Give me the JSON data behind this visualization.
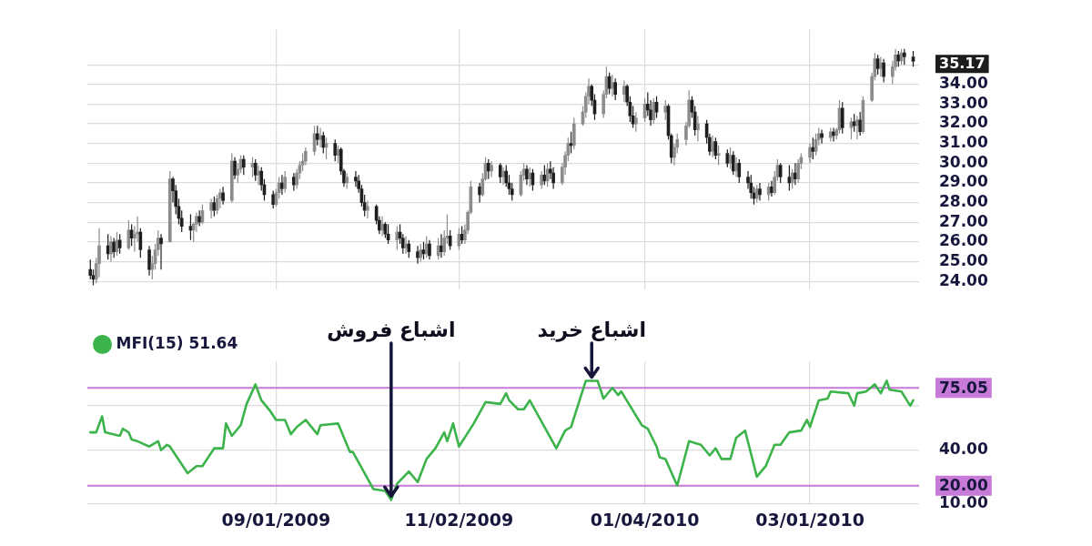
{
  "chart_data": [
    {
      "type": "candlestick",
      "x": [
        "2009-06-30",
        "2009-07-01",
        "2009-07-02",
        "2009-07-03",
        "2009-07-06",
        "2009-07-07",
        "2009-07-08",
        "2009-07-09",
        "2009-07-10",
        "2009-07-13",
        "2009-07-14",
        "2009-07-15",
        "2009-07-16",
        "2009-07-17",
        "2009-07-20",
        "2009-07-21",
        "2009-07-22",
        "2009-07-23",
        "2009-07-24",
        "2009-07-27",
        "2009-07-28",
        "2009-07-29",
        "2009-07-30",
        "2009-07-31",
        "2009-08-03",
        "2009-08-04",
        "2009-08-05",
        "2009-08-06",
        "2009-08-07",
        "2009-08-10",
        "2009-08-11",
        "2009-08-12",
        "2009-08-13",
        "2009-08-14",
        "2009-08-17",
        "2009-08-18",
        "2009-08-19",
        "2009-08-20",
        "2009-08-21",
        "2009-08-24",
        "2009-08-25",
        "2009-08-26",
        "2009-08-27",
        "2009-08-28",
        "2009-08-31",
        "2009-09-01",
        "2009-09-02",
        "2009-09-03",
        "2009-09-04",
        "2009-09-07",
        "2009-09-08",
        "2009-09-09",
        "2009-09-10",
        "2009-09-11",
        "2009-09-14",
        "2009-09-15",
        "2009-09-16",
        "2009-09-17",
        "2009-09-18",
        "2009-09-21",
        "2009-09-22",
        "2009-09-23",
        "2009-09-24",
        "2009-09-25",
        "2009-09-28",
        "2009-09-29",
        "2009-09-30",
        "2009-10-01",
        "2009-10-02",
        "2009-10-05",
        "2009-10-06",
        "2009-10-07",
        "2009-10-08",
        "2009-10-09",
        "2009-10-12",
        "2009-10-13",
        "2009-10-14",
        "2009-10-15",
        "2009-10-16",
        "2009-10-19",
        "2009-10-20",
        "2009-10-21",
        "2009-10-22",
        "2009-10-23",
        "2009-10-26",
        "2009-10-27",
        "2009-10-28",
        "2009-10-29",
        "2009-10-30",
        "2009-11-02",
        "2009-11-03",
        "2009-11-04",
        "2009-11-05",
        "2009-11-06",
        "2009-11-09",
        "2009-11-10",
        "2009-11-11",
        "2009-11-12",
        "2009-11-13",
        "2009-11-16",
        "2009-11-17",
        "2009-11-18",
        "2009-11-19",
        "2009-11-20",
        "2009-11-23",
        "2009-11-24",
        "2009-11-25",
        "2009-11-26",
        "2009-11-27",
        "2009-11-30",
        "2009-12-01",
        "2009-12-02",
        "2009-12-03",
        "2009-12-04",
        "2009-12-07",
        "2009-12-08",
        "2009-12-09",
        "2009-12-10",
        "2009-12-11",
        "2009-12-14",
        "2009-12-15",
        "2009-12-16",
        "2009-12-17",
        "2009-12-18",
        "2009-12-21",
        "2009-12-22",
        "2009-12-23",
        "2009-12-24",
        "2009-12-25",
        "2009-12-28",
        "2009-12-29",
        "2009-12-30",
        "2009-12-31",
        "2010-01-01",
        "2010-01-04",
        "2010-01-05",
        "2010-01-06",
        "2010-01-07",
        "2010-01-08",
        "2010-01-11",
        "2010-01-12",
        "2010-01-13",
        "2010-01-14",
        "2010-01-15",
        "2010-01-18",
        "2010-01-19",
        "2010-01-20",
        "2010-01-21",
        "2010-01-22",
        "2010-01-25",
        "2010-01-26",
        "2010-01-27",
        "2010-01-28",
        "2010-01-29",
        "2010-02-01",
        "2010-02-02",
        "2010-02-03",
        "2010-02-04",
        "2010-02-05",
        "2010-02-08",
        "2010-02-09",
        "2010-02-10",
        "2010-02-11",
        "2010-02-12",
        "2010-02-15",
        "2010-02-16",
        "2010-02-17",
        "2010-02-18",
        "2010-02-19",
        "2010-02-22",
        "2010-02-23",
        "2010-02-24",
        "2010-02-25",
        "2010-02-26",
        "2010-03-01",
        "2010-03-02",
        "2010-03-03",
        "2010-03-04",
        "2010-03-05",
        "2010-03-08",
        "2010-03-09",
        "2010-03-10",
        "2010-03-11",
        "2010-03-12",
        "2010-03-15",
        "2010-03-16",
        "2010-03-17",
        "2010-03-18",
        "2010-03-19",
        "2010-03-22",
        "2010-03-23",
        "2010-03-24",
        "2010-03-25",
        "2010-03-26",
        "2010-03-29",
        "2010-03-30",
        "2010-03-31",
        "2010-04-01",
        "2010-04-02",
        "2010-04-05"
      ],
      "ohlc": [
        [
          24.6,
          25.1,
          24.1,
          24.3
        ],
        [
          24.3,
          24.6,
          23.8,
          24.1
        ],
        [
          24.1,
          25.2,
          23.9,
          24.9
        ],
        [
          24.9,
          26.7,
          24.2,
          25.8
        ],
        [
          25.8,
          26.4,
          25.1,
          25.4
        ],
        [
          25.4,
          26.3,
          25.0,
          26.0
        ],
        [
          26.0,
          26.2,
          25.2,
          25.5
        ],
        [
          25.5,
          26.5,
          25.3,
          26.1
        ],
        [
          26.1,
          26.4,
          25.4,
          25.7
        ],
        [
          25.7,
          27.1,
          25.6,
          26.6
        ],
        [
          26.6,
          26.9,
          25.8,
          26.2
        ],
        [
          26.2,
          26.8,
          25.5,
          26.4
        ],
        [
          26.4,
          27.3,
          26.0,
          26.5
        ],
        [
          26.5,
          26.7,
          25.2,
          25.6
        ],
        [
          25.6,
          25.8,
          24.3,
          24.6
        ],
        [
          24.6,
          25.3,
          24.1,
          24.9
        ],
        [
          24.9,
          25.9,
          24.6,
          25.6
        ],
        [
          25.6,
          26.6,
          25.3,
          26.2
        ],
        [
          26.2,
          26.4,
          24.6,
          25.9
        ],
        [
          26.0,
          29.6,
          26.0,
          29.2
        ],
        [
          29.2,
          29.3,
          28.0,
          28.6
        ],
        [
          28.6,
          28.9,
          27.4,
          27.8
        ],
        [
          27.8,
          28.2,
          26.9,
          27.2
        ],
        [
          27.2,
          27.6,
          26.5,
          26.8
        ],
        [
          26.8,
          27.4,
          26.1,
          26.6
        ],
        [
          26.6,
          27.0,
          26.0,
          26.9
        ],
        [
          26.9,
          27.5,
          26.5,
          27.3
        ],
        [
          27.3,
          27.6,
          26.8,
          27.0
        ],
        [
          27.0,
          27.9,
          26.9,
          27.6
        ],
        [
          27.6,
          28.2,
          27.2,
          28.0
        ],
        [
          28.0,
          28.3,
          27.3,
          27.6
        ],
        [
          27.6,
          28.4,
          27.4,
          28.2
        ],
        [
          28.2,
          28.7,
          27.7,
          28.5
        ],
        [
          28.5,
          28.8,
          27.9,
          28.1
        ],
        [
          28.1,
          30.5,
          28.0,
          30.1
        ],
        [
          30.1,
          30.3,
          29.2,
          29.4
        ],
        [
          29.4,
          30.0,
          29.0,
          29.7
        ],
        [
          29.7,
          30.4,
          29.5,
          30.2
        ],
        [
          30.2,
          30.4,
          29.4,
          29.8
        ],
        [
          29.8,
          30.3,
          29.3,
          30.0
        ],
        [
          30.0,
          30.2,
          29.1,
          29.4
        ],
        [
          29.4,
          29.9,
          28.9,
          29.6
        ],
        [
          29.6,
          29.8,
          28.6,
          28.9
        ],
        [
          28.9,
          29.2,
          28.1,
          28.4
        ],
        [
          28.4,
          28.6,
          27.7,
          27.9
        ],
        [
          27.9,
          28.7,
          27.8,
          28.5
        ],
        [
          28.5,
          29.3,
          28.2,
          29.0
        ],
        [
          29.0,
          29.4,
          28.4,
          28.7
        ],
        [
          28.7,
          29.6,
          28.5,
          29.3
        ],
        [
          29.3,
          29.5,
          28.6,
          28.9
        ],
        [
          28.9,
          29.7,
          28.7,
          29.5
        ],
        [
          29.5,
          30.1,
          29.2,
          29.9
        ],
        [
          29.9,
          30.5,
          29.6,
          30.1
        ],
        [
          30.1,
          30.8,
          29.9,
          30.6
        ],
        [
          30.6,
          31.9,
          30.4,
          31.5
        ],
        [
          31.5,
          31.9,
          30.9,
          31.2
        ],
        [
          31.2,
          31.8,
          30.8,
          31.4
        ],
        [
          31.4,
          31.6,
          30.5,
          30.8
        ],
        [
          30.8,
          31.3,
          30.2,
          31.0
        ],
        [
          31.0,
          31.2,
          30.1,
          30.4
        ],
        [
          30.4,
          30.9,
          30.0,
          30.7
        ],
        [
          30.7,
          30.8,
          29.4,
          29.6
        ],
        [
          29.6,
          29.7,
          28.8,
          29.0
        ],
        [
          29.0,
          29.5,
          28.7,
          29.3
        ],
        [
          29.3,
          29.6,
          28.8,
          29.1
        ],
        [
          29.1,
          29.4,
          28.5,
          28.7
        ],
        [
          28.7,
          28.9,
          27.8,
          28.0
        ],
        [
          28.0,
          28.4,
          27.3,
          27.6
        ],
        [
          27.6,
          28.1,
          27.2,
          27.8
        ],
        [
          27.8,
          27.9,
          26.9,
          27.1
        ],
        [
          27.1,
          27.3,
          26.4,
          26.6
        ],
        [
          26.6,
          27.3,
          26.3,
          26.9
        ],
        [
          26.9,
          27.0,
          26.2,
          26.4
        ],
        [
          26.4,
          26.9,
          25.9,
          26.1
        ],
        [
          26.1,
          26.8,
          25.6,
          26.5
        ],
        [
          26.5,
          26.9,
          25.9,
          26.2
        ],
        [
          26.2,
          26.4,
          25.4,
          25.7
        ],
        [
          25.7,
          26.3,
          25.4,
          25.9
        ],
        [
          25.9,
          26.1,
          25.2,
          25.5
        ],
        [
          25.5,
          25.8,
          24.9,
          25.2
        ],
        [
          25.2,
          25.9,
          25.0,
          25.6
        ],
        [
          25.6,
          26.0,
          25.1,
          25.4
        ],
        [
          25.4,
          26.3,
          25.2,
          25.9
        ],
        [
          25.9,
          26.1,
          25.1,
          25.3
        ],
        [
          25.3,
          26.2,
          25.1,
          25.8
        ],
        [
          25.8,
          26.4,
          25.2,
          25.5
        ],
        [
          25.5,
          26.6,
          25.3,
          26.2
        ],
        [
          26.2,
          27.4,
          25.9,
          26.3
        ],
        [
          26.3,
          26.6,
          25.6,
          25.8
        ],
        [
          25.8,
          26.7,
          25.6,
          26.4
        ],
        [
          26.4,
          26.8,
          25.9,
          26.1
        ],
        [
          26.1,
          26.9,
          25.9,
          26.6
        ],
        [
          26.6,
          27.6,
          26.4,
          27.5
        ],
        [
          27.5,
          29.1,
          27.4,
          28.8
        ],
        [
          28.8,
          29.0,
          28.0,
          28.4
        ],
        [
          28.4,
          29.5,
          28.3,
          29.2
        ],
        [
          29.2,
          30.3,
          29.1,
          30.0
        ],
        [
          30.0,
          30.2,
          29.2,
          29.6
        ],
        [
          29.6,
          30.1,
          29.3,
          29.9
        ],
        [
          29.9,
          30.0,
          29.0,
          29.3
        ],
        [
          29.3,
          29.8,
          28.9,
          29.6
        ],
        [
          29.6,
          29.9,
          28.8,
          29.0
        ],
        [
          29.0,
          29.4,
          28.4,
          28.7
        ],
        [
          28.7,
          29.0,
          28.1,
          28.4
        ],
        [
          28.4,
          29.6,
          28.3,
          29.4
        ],
        [
          29.4,
          30.0,
          29.1,
          29.7
        ],
        [
          29.7,
          29.9,
          28.9,
          29.2
        ],
        [
          29.2,
          29.8,
          28.8,
          29.5
        ],
        [
          29.5,
          29.7,
          28.6,
          28.9
        ],
        [
          28.9,
          29.6,
          28.7,
          29.4
        ],
        [
          29.4,
          29.9,
          28.9,
          29.1
        ],
        [
          29.1,
          30.0,
          28.8,
          29.7
        ],
        [
          29.7,
          30.1,
          29.2,
          29.5
        ],
        [
          29.5,
          29.8,
          28.7,
          29.0
        ],
        [
          29.0,
          30.0,
          28.9,
          29.8
        ],
        [
          29.8,
          30.6,
          29.4,
          30.4
        ],
        [
          30.4,
          31.3,
          30.1,
          31.0
        ],
        [
          31.0,
          31.6,
          30.5,
          30.9
        ],
        [
          30.9,
          32.3,
          30.7,
          32.0
        ],
        [
          32.0,
          32.9,
          31.9,
          32.6
        ],
        [
          32.6,
          33.6,
          32.3,
          33.4
        ],
        [
          33.4,
          34.3,
          33.0,
          33.9
        ],
        [
          33.9,
          34.0,
          32.9,
          33.2
        ],
        [
          33.2,
          33.5,
          32.2,
          32.5
        ],
        [
          32.5,
          33.7,
          32.3,
          33.5
        ],
        [
          33.5,
          34.9,
          33.3,
          34.4
        ],
        [
          34.4,
          34.6,
          33.5,
          33.8
        ],
        [
          33.8,
          34.5,
          33.4,
          34.1
        ],
        [
          34.1,
          34.3,
          33.2,
          33.5
        ],
        [
          33.5,
          34.2,
          33.1,
          33.9
        ],
        [
          33.9,
          34.0,
          32.9,
          33.1
        ],
        [
          33.1,
          33.4,
          32.1,
          32.4
        ],
        [
          32.4,
          32.9,
          31.8,
          32.0
        ],
        [
          32.0,
          32.6,
          31.6,
          32.3
        ],
        [
          32.3,
          33.3,
          32.1,
          33.0
        ],
        [
          33.0,
          33.6,
          32.4,
          32.7
        ],
        [
          32.7,
          33.2,
          31.9,
          32.2
        ],
        [
          32.2,
          33.3,
          32.0,
          33.1
        ],
        [
          33.1,
          33.4,
          32.3,
          32.6
        ],
        [
          32.6,
          33.2,
          32.2,
          32.9
        ],
        [
          32.9,
          33.0,
          31.2,
          31.4
        ],
        [
          31.4,
          31.5,
          30.0,
          30.3
        ],
        [
          30.3,
          31.0,
          29.9,
          30.8
        ],
        [
          30.8,
          31.5,
          30.5,
          31.2
        ],
        [
          31.2,
          32.1,
          30.9,
          31.9
        ],
        [
          31.9,
          33.7,
          31.8,
          33.2
        ],
        [
          33.2,
          33.4,
          32.3,
          32.6
        ],
        [
          32.6,
          32.9,
          31.4,
          31.7
        ],
        [
          31.7,
          32.4,
          31.1,
          32.0
        ],
        [
          32.0,
          32.2,
          31.0,
          31.3
        ],
        [
          31.3,
          31.5,
          30.4,
          30.6
        ],
        [
          30.6,
          31.4,
          30.3,
          31.1
        ],
        [
          31.1,
          31.3,
          30.2,
          30.4
        ],
        [
          30.4,
          30.9,
          29.9,
          30.5
        ],
        [
          30.5,
          30.7,
          29.8,
          30.0
        ],
        [
          30.0,
          30.8,
          29.7,
          30.4
        ],
        [
          30.4,
          30.6,
          29.4,
          29.6
        ],
        [
          29.6,
          30.3,
          29.3,
          30.0
        ],
        [
          30.0,
          30.2,
          29.0,
          29.3
        ],
        [
          29.3,
          29.6,
          28.7,
          29.0
        ],
        [
          29.0,
          29.4,
          28.2,
          28.5
        ],
        [
          28.5,
          28.8,
          27.9,
          28.2
        ],
        [
          28.2,
          28.9,
          28.0,
          28.7
        ],
        [
          28.7,
          29.0,
          28.1,
          28.4
        ],
        [
          28.4,
          29.0,
          28.1,
          28.8
        ],
        [
          28.8,
          29.1,
          28.3,
          28.5
        ],
        [
          28.5,
          29.6,
          28.4,
          29.3
        ],
        [
          29.3,
          30.2,
          29.1,
          29.9
        ],
        [
          29.9,
          30.0,
          29.0,
          29.3
        ],
        [
          29.3,
          29.9,
          28.6,
          29.0
        ],
        [
          29.0,
          29.7,
          28.7,
          29.5
        ],
        [
          29.5,
          30.0,
          28.9,
          29.2
        ],
        [
          29.2,
          30.2,
          29.0,
          30.0
        ],
        [
          30.0,
          30.5,
          29.7,
          30.3
        ],
        [
          30.3,
          31.0,
          30.0,
          30.8
        ],
        [
          30.8,
          31.3,
          30.2,
          30.6
        ],
        [
          30.6,
          31.5,
          30.4,
          31.2
        ],
        [
          31.2,
          31.8,
          30.9,
          31.5
        ],
        [
          31.5,
          31.7,
          31.0,
          31.3
        ],
        [
          31.3,
          31.8,
          31.1,
          31.6
        ],
        [
          31.6,
          31.8,
          31.1,
          31.4
        ],
        [
          31.4,
          31.8,
          31.2,
          31.7
        ],
        [
          31.7,
          33.2,
          31.5,
          32.8
        ],
        [
          32.8,
          33.1,
          31.5,
          31.8
        ],
        [
          31.8,
          32.3,
          31.2,
          32.1
        ],
        [
          32.1,
          32.5,
          31.6,
          31.9
        ],
        [
          31.9,
          32.4,
          31.2,
          32.2
        ],
        [
          32.2,
          32.6,
          31.4,
          31.6
        ],
        [
          31.6,
          33.4,
          31.5,
          33.2
        ],
        [
          33.2,
          34.6,
          33.1,
          34.4
        ],
        [
          34.4,
          35.6,
          34.2,
          35.3
        ],
        [
          35.3,
          35.5,
          34.5,
          34.8
        ],
        [
          34.8,
          35.4,
          34.4,
          35.1
        ],
        [
          35.1,
          35.3,
          34.1,
          34.4
        ],
        [
          34.4,
          35.2,
          34.0,
          34.9
        ],
        [
          34.9,
          35.8,
          34.7,
          35.5
        ],
        [
          35.5,
          35.7,
          34.9,
          35.2
        ],
        [
          35.2,
          35.8,
          35.0,
          35.6
        ],
        [
          35.6,
          35.8,
          35.0,
          35.4
        ],
        [
          35.4,
          35.7,
          34.9,
          35.17
        ]
      ],
      "colors": [
        "#1e1e1e",
        "#1e1e1e",
        "#8c8c8c",
        "#8c8c8c",
        "#1e1e1e",
        "#8c8c8c",
        "#1e1e1e",
        "#8c8c8c",
        "#1e1e1e",
        "#8c8c8c",
        "#1e1e1e",
        "#8c8c8c",
        "#8c8c8c",
        "#1e1e1e",
        "#1e1e1e",
        "#8c8c8c",
        "#8c8c8c",
        "#8c8c8c",
        "#1e1e1e",
        "#8c8c8c",
        "#1e1e1e",
        "#1e1e1e",
        "#1e1e1e",
        "#1e1e1e",
        "#1e1e1e",
        "#8c8c8c",
        "#8c8c8c",
        "#1e1e1e",
        "#8c8c8c",
        "#8c8c8c",
        "#1e1e1e",
        "#8c8c8c",
        "#8c8c8c",
        "#1e1e1e",
        "#8c8c8c",
        "#1e1e1e",
        "#8c8c8c",
        "#8c8c8c",
        "#1e1e1e",
        "#8c8c8c",
        "#1e1e1e",
        "#8c8c8c",
        "#1e1e1e",
        "#1e1e1e",
        "#1e1e1e",
        "#8c8c8c",
        "#8c8c8c",
        "#1e1e1e",
        "#8c8c8c",
        "#1e1e1e",
        "#8c8c8c",
        "#8c8c8c",
        "#8c8c8c",
        "#8c8c8c",
        "#8c8c8c",
        "#1e1e1e",
        "#8c8c8c",
        "#1e1e1e",
        "#8c8c8c",
        "#1e1e1e",
        "#8c8c8c",
        "#1e1e1e",
        "#1e1e1e",
        "#8c8c8c",
        "#1e1e1e",
        "#1e1e1e",
        "#1e1e1e",
        "#1e1e1e",
        "#8c8c8c",
        "#1e1e1e",
        "#1e1e1e",
        "#8c8c8c",
        "#1e1e1e",
        "#1e1e1e",
        "#8c8c8c",
        "#1e1e1e",
        "#1e1e1e",
        "#8c8c8c",
        "#1e1e1e",
        "#1e1e1e",
        "#8c8c8c",
        "#1e1e1e",
        "#8c8c8c",
        "#1e1e1e",
        "#8c8c8c",
        "#1e1e1e",
        "#8c8c8c",
        "#8c8c8c",
        "#1e1e1e",
        "#8c8c8c",
        "#1e1e1e",
        "#8c8c8c",
        "#8c8c8c",
        "#8c8c8c",
        "#1e1e1e",
        "#8c8c8c",
        "#8c8c8c",
        "#1e1e1e",
        "#8c8c8c",
        "#1e1e1e",
        "#8c8c8c",
        "#1e1e1e",
        "#1e1e1e",
        "#1e1e1e",
        "#8c8c8c",
        "#8c8c8c",
        "#1e1e1e",
        "#8c8c8c",
        "#1e1e1e",
        "#8c8c8c",
        "#1e1e1e",
        "#8c8c8c",
        "#1e1e1e",
        "#1e1e1e",
        "#8c8c8c",
        "#8c8c8c",
        "#8c8c8c",
        "#1e1e1e",
        "#8c8c8c",
        "#8c8c8c",
        "#8c8c8c",
        "#8c8c8c",
        "#1e1e1e",
        "#1e1e1e",
        "#8c8c8c",
        "#8c8c8c",
        "#1e1e1e",
        "#8c8c8c",
        "#1e1e1e",
        "#8c8c8c",
        "#1e1e1e",
        "#1e1e1e",
        "#1e1e1e",
        "#8c8c8c",
        "#8c8c8c",
        "#1e1e1e",
        "#1e1e1e",
        "#8c8c8c",
        "#1e1e1e",
        "#8c8c8c",
        "#1e1e1e",
        "#1e1e1e",
        "#8c8c8c",
        "#8c8c8c",
        "#8c8c8c",
        "#8c8c8c",
        "#1e1e1e",
        "#1e1e1e",
        "#8c8c8c",
        "#1e1e1e",
        "#1e1e1e",
        "#8c8c8c",
        "#1e1e1e",
        "#8c8c8c",
        "#1e1e1e",
        "#8c8c8c",
        "#1e1e1e",
        "#8c8c8c",
        "#1e1e1e",
        "#1e1e1e",
        "#1e1e1e",
        "#1e1e1e",
        "#8c8c8c",
        "#1e1e1e",
        "#8c8c8c",
        "#1e1e1e",
        "#8c8c8c",
        "#8c8c8c",
        "#1e1e1e",
        "#1e1e1e",
        "#8c8c8c",
        "#1e1e1e",
        "#8c8c8c",
        "#8c8c8c",
        "#8c8c8c",
        "#1e1e1e",
        "#8c8c8c",
        "#8c8c8c",
        "#1e1e1e",
        "#8c8c8c",
        "#1e1e1e",
        "#8c8c8c",
        "#8c8c8c",
        "#1e1e1e",
        "#8c8c8c",
        "#1e1e1e",
        "#8c8c8c",
        "#1e1e1e",
        "#8c8c8c",
        "#8c8c8c",
        "#8c8c8c",
        "#1e1e1e",
        "#8c8c8c",
        "#1e1e1e",
        "#8c8c8c",
        "#8c8c8c",
        "#1e1e1e",
        "#8c8c8c",
        "#1e1e1e",
        "#1e1e1e"
      ],
      "xlim": [
        "2009-06-29",
        "2010-04-07"
      ],
      "xticks": [
        {
          "value": "2009-09-01",
          "label": null
        },
        {
          "value": "2009-11-02",
          "label": null
        },
        {
          "value": "2010-01-04",
          "label": null
        },
        {
          "value": "2010-03-01",
          "label": null
        }
      ],
      "ylim": [
        23.6,
        36.8
      ],
      "yticks": [
        {
          "value": 24,
          "label": "24.00"
        },
        {
          "value": 25,
          "label": "25.00"
        },
        {
          "value": 26,
          "label": "26.00"
        },
        {
          "value": 27,
          "label": "27.00"
        },
        {
          "value": 28,
          "label": "28.00"
        },
        {
          "value": 29,
          "label": "29.00"
        },
        {
          "value": 30,
          "label": "30.00"
        },
        {
          "value": 31,
          "label": "31.00"
        },
        {
          "value": 32,
          "label": "32.00"
        },
        {
          "value": 33,
          "label": "33.00"
        },
        {
          "value": 34,
          "label": "34.00"
        },
        {
          "value": 35,
          "label": null
        }
      ],
      "grid": true,
      "tick_labels": "y",
      "annotations": [
        "35.17"
      ]
    },
    {
      "type": "line",
      "x": [
        "2009-06-30",
        "2009-07-02",
        "2009-07-04",
        "2009-07-05",
        "2009-07-10",
        "2009-07-11",
        "2009-07-13",
        "2009-07-14",
        "2009-07-16",
        "2009-07-20",
        "2009-07-23",
        "2009-07-24",
        "2009-07-26",
        "2009-07-27",
        "2009-08-02",
        "2009-08-05",
        "2009-08-07",
        "2009-08-11",
        "2009-08-14",
        "2009-08-15",
        "2009-08-17",
        "2009-08-20",
        "2009-08-22",
        "2009-08-25",
        "2009-08-27",
        "2009-08-30",
        "2009-09-01",
        "2009-09-04",
        "2009-09-06",
        "2009-09-08",
        "2009-09-11",
        "2009-09-15",
        "2009-09-16",
        "2009-09-22",
        "2009-09-26",
        "2009-09-27",
        "2009-10-04",
        "2009-10-08",
        "2009-10-10",
        "2009-10-12",
        "2009-10-16",
        "2009-10-19",
        "2009-10-22",
        "2009-10-25",
        "2009-10-28",
        "2009-10-29",
        "2009-10-31",
        "2009-11-02",
        "2009-11-07",
        "2009-11-11",
        "2009-11-16",
        "2009-11-18",
        "2009-11-19",
        "2009-11-22",
        "2009-11-24",
        "2009-11-26",
        "2009-12-02",
        "2009-12-05",
        "2009-12-08",
        "2009-12-10",
        "2009-12-15",
        "2009-12-19",
        "2009-12-21",
        "2009-12-24",
        "2009-12-26",
        "2009-12-27",
        "2010-01-03",
        "2010-01-05",
        "2010-01-08",
        "2010-01-09",
        "2010-01-11",
        "2010-01-15",
        "2010-01-19",
        "2010-01-23",
        "2010-01-26",
        "2010-01-28",
        "2010-01-30",
        "2010-02-02",
        "2010-02-04",
        "2010-02-07",
        "2010-02-11",
        "2010-02-14",
        "2010-02-17",
        "2010-02-19",
        "2010-02-22",
        "2010-02-26",
        "2010-02-28",
        "2010-03-01",
        "2010-03-04",
        "2010-03-07",
        "2010-03-08",
        "2010-03-14",
        "2010-03-16",
        "2010-03-17",
        "2010-03-20",
        "2010-03-23",
        "2010-03-25",
        "2010-03-27",
        "2010-03-28",
        "2010-04-01",
        "2010-04-04",
        "2010-04-05"
      ],
      "series": [
        {
          "name": "MFI(15) 51.64",
          "color": "#3cb44b",
          "values": [
            50,
            50,
            59,
            50,
            48,
            52,
            50,
            46,
            45,
            42,
            45,
            40,
            43,
            42,
            27,
            31,
            31,
            41,
            41,
            55,
            48,
            54,
            66,
            77,
            68,
            62,
            57,
            57,
            49,
            53,
            57,
            49,
            54,
            55,
            39,
            39,
            18,
            17,
            12,
            21,
            28,
            22,
            35,
            41,
            50,
            45,
            55,
            42,
            55,
            67,
            66,
            72,
            68,
            63,
            63,
            68,
            50,
            41,
            51,
            53,
            79,
            79,
            69,
            75,
            71,
            73,
            54,
            52,
            42,
            36,
            35,
            20,
            45,
            43,
            37,
            41,
            35,
            35,
            47,
            51,
            25,
            31,
            43,
            43,
            50,
            51,
            57,
            53,
            68,
            69,
            73,
            72,
            65,
            72,
            73,
            77,
            72,
            79,
            74,
            73,
            65,
            68
          ]
        }
      ],
      "xlim": [
        "2009-06-29",
        "2010-04-07"
      ],
      "xticks": [
        {
          "value": "2009-09-01",
          "label": "09/01/2009"
        },
        {
          "value": "2009-11-02",
          "label": "11/02/2009"
        },
        {
          "value": "2010-01-04",
          "label": "01/04/2010"
        },
        {
          "value": "2010-03-01",
          "label": "03/01/2010"
        }
      ],
      "ylim": [
        10,
        90
      ],
      "yticks": [
        {
          "value": 10,
          "label": "10.00"
        },
        {
          "value": 40,
          "label": "40.00"
        },
        {
          "value": 65,
          "label": null
        }
      ],
      "grid": true,
      "legend": "top left",
      "ref_lines": [
        {
          "axis": "y",
          "value": 75.05,
          "label": "75.05",
          "color": "#c77ad8"
        },
        {
          "axis": "y",
          "value": 20,
          "label": "20.00",
          "color": "#c77ad8"
        }
      ],
      "annotations": [
        {
          "text": "اشباع فروش",
          "x": "2009-10-10",
          "y": 12
        },
        {
          "text": "اشباع خرید",
          "x": "2009-12-17",
          "y": 79
        }
      ]
    }
  ]
}
